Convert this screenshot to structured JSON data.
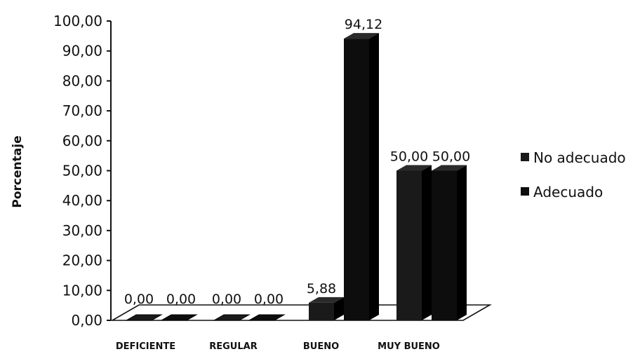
{
  "chart_data": {
    "type": "bar",
    "title": "",
    "xlabel": "",
    "ylabel": "Porcentaje",
    "categories": [
      "DEFICIENTE",
      "REGULAR",
      "BUENO",
      "MUY BUENO"
    ],
    "series": [
      {
        "name": "No adecuado",
        "values": [
          0.0,
          0.0,
          5.88,
          50.0
        ],
        "labels": [
          "0,00",
          "0,00",
          "5,88",
          "50,00"
        ],
        "color": "#1a1a1a"
      },
      {
        "name": "Adecuado",
        "values": [
          0.0,
          0.0,
          94.12,
          50.0
        ],
        "labels": [
          "0,00",
          "0,00",
          "94,12",
          "50,00"
        ],
        "color": "#0d0d0d"
      }
    ],
    "ylim": [
      0,
      100
    ],
    "yticks": [
      "0,00",
      "10,00",
      "20,00",
      "30,00",
      "40,00",
      "50,00",
      "60,00",
      "70,00",
      "80,00",
      "90,00",
      "100,00"
    ],
    "legend_position": "right",
    "grid": false,
    "style": "3d-column"
  }
}
